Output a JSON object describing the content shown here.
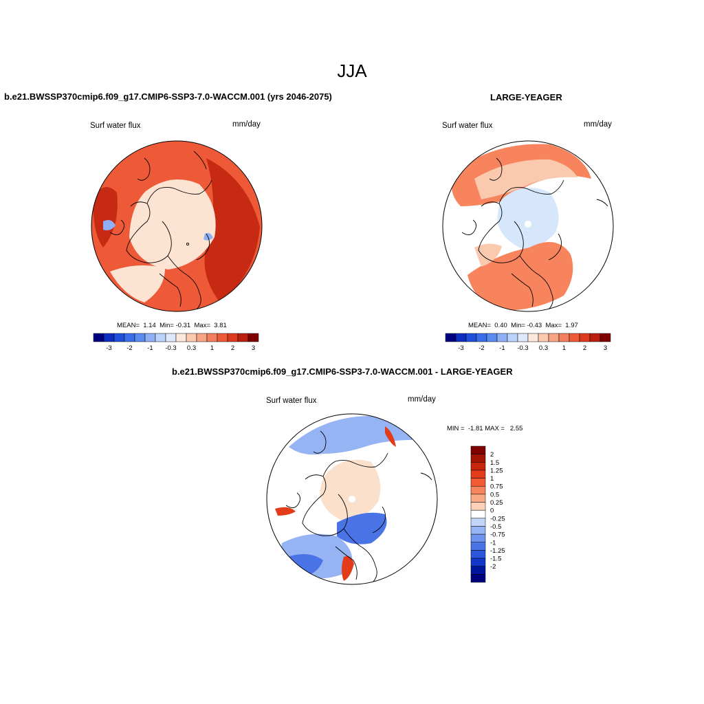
{
  "season": "JJA",
  "panels": [
    {
      "id": "case",
      "title": "b.e21.BWSSP370cmip6.f09_g17.CMIP6-SSP3-7.0-WACCM.001 (yrs 2046-2075)",
      "variable": "Surf water flux",
      "units": "mm/day",
      "stats": {
        "mean_label": "MEAN=",
        "mean": "1.14",
        "min_label": "Min=",
        "min": "-0.31",
        "max_label": "Max=",
        "max": "3.81"
      }
    },
    {
      "id": "obs",
      "title": "LARGE-YEAGER",
      "variable": "Surf water flux",
      "units": "mm/day",
      "stats": {
        "mean_label": "MEAN=",
        "mean": "0.40",
        "min_label": "Min=",
        "min": "-0.43",
        "max_label": "Max=",
        "max": "1.97"
      }
    },
    {
      "id": "diff",
      "title": "b.e21.BWSSP370cmip6.f09_g17.CMIP6-SSP3-7.0-WACCM.001 - LARGE-YEAGER",
      "variable": "Surf water flux",
      "units": "mm/day",
      "minmax": {
        "min_label": "MIN =",
        "min": "-1.81",
        "max_label": "MAX =",
        "max": "2.55"
      }
    }
  ],
  "colorbar_top": {
    "colors": [
      "#00007f",
      "#0c2fbf",
      "#1f4fd9",
      "#3a6fe8",
      "#5b8bef",
      "#8fb0f4",
      "#bcd2f8",
      "#dde9fb",
      "#fde9dc",
      "#fbc9ae",
      "#f8a585",
      "#f47f5e",
      "#ee5a38",
      "#dc3a1e",
      "#b91f0e",
      "#7f0000"
    ],
    "tick_labels": [
      "-3",
      "-2",
      "-1",
      "-0.3",
      "0.3",
      "1",
      "2",
      "3"
    ]
  },
  "colorbar_diff": {
    "colors": [
      "#800000",
      "#a31406",
      "#c7250c",
      "#e23c1a",
      "#f15a33",
      "#f7845c",
      "#fbaa88",
      "#fdd0b8",
      "#ffffff",
      "#c2d5f8",
      "#96b3f3",
      "#6e93ee",
      "#4a73e6",
      "#2c56dc",
      "#1238c9",
      "#00159e",
      "#00007f"
    ],
    "tick_labels": [
      "2",
      "1.5",
      "1.25",
      "1",
      "0.75",
      "0.5",
      "0.25",
      "0",
      "-0.25",
      "-0.5",
      "-0.75",
      "-1",
      "-1.25",
      "-1.5",
      "-2"
    ]
  },
  "map_colors": {
    "case_base": "#ee5a38",
    "case_dark": "#c62a12",
    "case_ice": "#fde3d2",
    "case_cool": "#8fb0f4",
    "obs_warm": "#f7845c",
    "obs_light": "#fbc9ae",
    "obs_ice": "#d6e6fb",
    "diff_ice": "#fbe0cc",
    "diff_blue": "#4a73e6",
    "diff_light_blue": "#96b3f3",
    "diff_red": "#e23c1a"
  }
}
